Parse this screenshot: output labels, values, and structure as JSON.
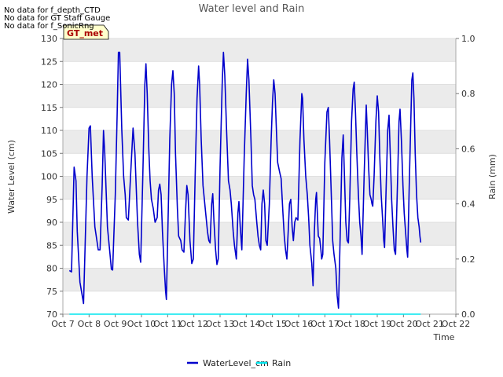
{
  "notices": [
    "No data for f_depth_CTD",
    "No data for GT Staff Gauge",
    "No data for f_SonicRng"
  ],
  "station_badge": "GT_met",
  "chart_data": {
    "type": "line",
    "title": "Water level and Rain",
    "xlabel": "Time",
    "ylabel": "Water Level (cm)",
    "y2label": "Rain (mm)",
    "x_ticks": [
      "Oct 7",
      "Oct 8",
      "Oct 9",
      "Oct 10",
      "Oct 11",
      "Oct 12",
      "Oct 13",
      "Oct 14",
      "Oct 15",
      "Oct 16",
      "Oct 17",
      "Oct 18",
      "Oct 19",
      "Oct 20",
      "Oct 21",
      "Oct 22"
    ],
    "xlim_days": [
      0,
      15
    ],
    "ylim": [
      70,
      130
    ],
    "y_ticks": [
      70,
      75,
      80,
      85,
      90,
      95,
      100,
      105,
      110,
      115,
      120,
      125,
      130
    ],
    "y2lim": [
      0.0,
      1.0
    ],
    "y2_ticks": [
      "0.0",
      "0.2",
      "0.4",
      "0.6",
      "0.8",
      "1.0"
    ],
    "grid": true,
    "legend_position": "bottom-center",
    "series": [
      {
        "name": "WaterLevel_cm",
        "color": "#0000cc",
        "axis": "left",
        "points": [
          [
            0.25,
            79.5
          ],
          [
            0.33,
            79.2
          ],
          [
            0.43,
            102
          ],
          [
            0.5,
            99
          ],
          [
            0.55,
            88
          ],
          [
            0.65,
            77
          ],
          [
            0.79,
            72.3
          ],
          [
            0.92,
            100
          ],
          [
            1.0,
            110.5
          ],
          [
            1.05,
            111
          ],
          [
            1.12,
            100
          ],
          [
            1.22,
            89
          ],
          [
            1.3,
            86
          ],
          [
            1.35,
            84
          ],
          [
            1.42,
            84
          ],
          [
            1.5,
            98
          ],
          [
            1.55,
            110
          ],
          [
            1.6,
            105
          ],
          [
            1.7,
            89
          ],
          [
            1.8,
            83
          ],
          [
            1.85,
            79.8
          ],
          [
            1.9,
            79.6
          ],
          [
            2.0,
            96
          ],
          [
            2.07,
            113
          ],
          [
            2.12,
            127
          ],
          [
            2.17,
            127
          ],
          [
            2.25,
            110
          ],
          [
            2.32,
            100
          ],
          [
            2.38,
            96
          ],
          [
            2.42,
            91
          ],
          [
            2.5,
            90.5
          ],
          [
            2.6,
            102
          ],
          [
            2.68,
            110.5
          ],
          [
            2.75,
            105
          ],
          [
            2.85,
            90
          ],
          [
            2.92,
            83
          ],
          [
            2.97,
            81.3
          ],
          [
            3.05,
            100
          ],
          [
            3.13,
            120
          ],
          [
            3.17,
            124.5
          ],
          [
            3.22,
            118
          ],
          [
            3.28,
            106
          ],
          [
            3.33,
            99
          ],
          [
            3.38,
            95
          ],
          [
            3.45,
            93
          ],
          [
            3.52,
            90
          ],
          [
            3.6,
            91
          ],
          [
            3.65,
            97
          ],
          [
            3.7,
            98.3
          ],
          [
            3.75,
            96
          ],
          [
            3.8,
            88
          ],
          [
            3.87,
            80
          ],
          [
            3.92,
            75
          ],
          [
            3.95,
            73.2
          ],
          [
            4.0,
            86
          ],
          [
            4.08,
            108
          ],
          [
            4.15,
            120
          ],
          [
            4.2,
            123
          ],
          [
            4.25,
            118
          ],
          [
            4.3,
            105
          ],
          [
            4.37,
            93
          ],
          [
            4.42,
            87
          ],
          [
            4.5,
            86
          ],
          [
            4.55,
            84
          ],
          [
            4.62,
            83.5
          ],
          [
            4.68,
            92
          ],
          [
            4.73,
            98
          ],
          [
            4.78,
            96
          ],
          [
            4.85,
            86
          ],
          [
            4.92,
            81
          ],
          [
            4.98,
            82
          ],
          [
            5.05,
            100
          ],
          [
            5.12,
            117
          ],
          [
            5.18,
            124
          ],
          [
            5.22,
            120
          ],
          [
            5.28,
            108
          ],
          [
            5.35,
            98
          ],
          [
            5.45,
            92
          ],
          [
            5.52,
            88
          ],
          [
            5.57,
            86
          ],
          [
            5.62,
            85.5
          ],
          [
            5.68,
            94
          ],
          [
            5.72,
            96.2
          ],
          [
            5.77,
            90
          ],
          [
            5.83,
            84
          ],
          [
            5.88,
            80.8
          ],
          [
            5.93,
            82
          ],
          [
            6.0,
            102
          ],
          [
            6.08,
            120
          ],
          [
            6.13,
            127
          ],
          [
            6.18,
            122
          ],
          [
            6.25,
            110
          ],
          [
            6.32,
            99
          ],
          [
            6.38,
            97
          ],
          [
            6.43,
            94
          ],
          [
            6.5,
            88
          ],
          [
            6.55,
            85
          ],
          [
            6.62,
            82
          ],
          [
            6.68,
            92
          ],
          [
            6.72,
            94.5
          ],
          [
            6.77,
            89
          ],
          [
            6.83,
            84
          ],
          [
            6.92,
            104
          ],
          [
            7.0,
            118
          ],
          [
            7.05,
            125.5
          ],
          [
            7.1,
            121
          ],
          [
            7.18,
            108
          ],
          [
            7.23,
            98
          ],
          [
            7.28,
            96
          ],
          [
            7.33,
            95
          ],
          [
            7.4,
            90
          ],
          [
            7.45,
            87
          ],
          [
            7.5,
            85
          ],
          [
            7.55,
            84
          ],
          [
            7.6,
            94
          ],
          [
            7.65,
            97
          ],
          [
            7.7,
            94
          ],
          [
            7.75,
            86
          ],
          [
            7.8,
            85
          ],
          [
            7.88,
            94
          ],
          [
            7.95,
            108
          ],
          [
            8.0,
            116
          ],
          [
            8.05,
            121
          ],
          [
            8.1,
            118
          ],
          [
            8.15,
            110
          ],
          [
            8.2,
            103
          ],
          [
            8.27,
            101
          ],
          [
            8.33,
            99.5
          ],
          [
            8.4,
            92
          ],
          [
            8.45,
            87
          ],
          [
            8.5,
            84
          ],
          [
            8.55,
            82
          ],
          [
            8.6,
            88
          ],
          [
            8.65,
            94
          ],
          [
            8.7,
            95
          ],
          [
            8.75,
            89
          ],
          [
            8.8,
            86
          ],
          [
            8.85,
            90
          ],
          [
            8.9,
            91
          ],
          [
            8.97,
            90.5
          ],
          [
            9.05,
            108
          ],
          [
            9.12,
            118
          ],
          [
            9.15,
            117
          ],
          [
            9.2,
            108
          ],
          [
            9.27,
            100
          ],
          [
            9.33,
            96
          ],
          [
            9.38,
            91
          ],
          [
            9.43,
            85
          ],
          [
            9.5,
            81
          ],
          [
            9.55,
            76.2
          ],
          [
            9.6,
            88
          ],
          [
            9.65,
            95
          ],
          [
            9.68,
            96.5
          ],
          [
            9.72,
            91
          ],
          [
            9.75,
            87
          ],
          [
            9.8,
            86.5
          ],
          [
            9.85,
            84
          ],
          [
            9.88,
            82
          ],
          [
            9.92,
            83
          ],
          [
            10.0,
            103
          ],
          [
            10.08,
            114
          ],
          [
            10.13,
            115
          ],
          [
            10.18,
            108
          ],
          [
            10.25,
            95
          ],
          [
            10.3,
            86
          ],
          [
            10.35,
            83
          ],
          [
            10.42,
            80
          ],
          [
            10.47,
            74
          ],
          [
            10.52,
            71.3
          ],
          [
            10.58,
            86
          ],
          [
            10.65,
            104
          ],
          [
            10.7,
            109
          ],
          [
            10.75,
            100
          ],
          [
            10.8,
            90
          ],
          [
            10.85,
            86
          ],
          [
            10.9,
            85.5
          ],
          [
            10.95,
            95
          ],
          [
            11.02,
            112
          ],
          [
            11.08,
            119
          ],
          [
            11.12,
            120.5
          ],
          [
            11.17,
            114
          ],
          [
            11.22,
            105
          ],
          [
            11.28,
            96
          ],
          [
            11.33,
            90
          ],
          [
            11.38,
            87
          ],
          [
            11.42,
            83
          ],
          [
            11.5,
            100
          ],
          [
            11.55,
            110
          ],
          [
            11.58,
            115.5
          ],
          [
            11.62,
            110
          ],
          [
            11.67,
            102
          ],
          [
            11.72,
            96
          ],
          [
            11.77,
            95
          ],
          [
            11.8,
            94
          ],
          [
            11.83,
            93.5
          ],
          [
            11.88,
            100
          ],
          [
            11.95,
            112
          ],
          [
            12.0,
            117.5
          ],
          [
            12.05,
            114
          ],
          [
            12.1,
            104
          ],
          [
            12.15,
            96
          ],
          [
            12.2,
            91
          ],
          [
            12.25,
            86
          ],
          [
            12.28,
            84.5
          ],
          [
            12.35,
            100
          ],
          [
            12.4,
            110
          ],
          [
            12.45,
            113.3
          ],
          [
            12.5,
            104
          ],
          [
            12.55,
            95
          ],
          [
            12.6,
            89
          ],
          [
            12.65,
            84
          ],
          [
            12.7,
            83
          ],
          [
            12.78,
            100
          ],
          [
            12.83,
            112
          ],
          [
            12.87,
            114.6
          ],
          [
            12.92,
            108
          ],
          [
            12.98,
            98
          ],
          [
            13.03,
            92
          ],
          [
            13.08,
            88
          ],
          [
            13.13,
            84
          ],
          [
            13.16,
            82.4
          ],
          [
            13.22,
            98
          ],
          [
            13.28,
            112
          ],
          [
            13.32,
            121
          ],
          [
            13.36,
            122.5
          ],
          [
            13.4,
            117
          ],
          [
            13.45,
            105
          ],
          [
            13.5,
            96
          ],
          [
            13.55,
            91
          ],
          [
            13.6,
            89
          ],
          [
            13.63,
            87
          ],
          [
            13.66,
            85.6
          ]
        ]
      },
      {
        "name": "Rain",
        "color": "#00e5ee",
        "axis": "right",
        "points": [
          [
            0.25,
            0.0
          ],
          [
            13.66,
            0.0
          ]
        ]
      }
    ]
  }
}
